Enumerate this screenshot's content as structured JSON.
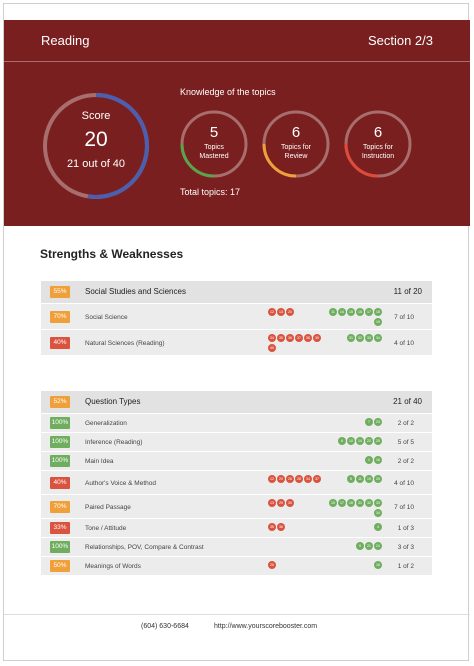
{
  "header": {
    "title": "Reading",
    "section": "Section 2/3"
  },
  "score": {
    "label": "Score",
    "value": "20",
    "detail": "21 out of 40",
    "fraction": 0.525
  },
  "knowledge": {
    "title": "Knowledge of the topics",
    "total": "Total topics: 17",
    "items": [
      {
        "count": "5",
        "label1": "Topics",
        "label2": "Mastered",
        "color": "#5aa34a"
      },
      {
        "count": "6",
        "label1": "Topics for",
        "label2": "Review",
        "color": "#f0a03a"
      },
      {
        "count": "6",
        "label1": "Topics for",
        "label2": "Instruction",
        "color": "#e04a3a"
      }
    ]
  },
  "strengths": {
    "title": "Strengths & Weaknesses"
  },
  "colors": {
    "green": "#6fae5f",
    "orange": "#f0a03a",
    "red": "#d9533f",
    "accent": "#7a1f1f"
  },
  "groups": [
    {
      "pct": "55%",
      "pct_color": "#f0a03a",
      "title": "Social Studies and Sciences",
      "score": "11 of 20",
      "rows": [
        {
          "pct": "70%",
          "pct_color": "#f0a03a",
          "label": "Social Science",
          "score": "7 of 10",
          "red": [
            "12",
            "13",
            "20"
          ],
          "green": [
            "11",
            "14",
            "15",
            "16",
            "17",
            "18",
            "19"
          ]
        },
        {
          "pct": "40%",
          "pct_color": "#d9533f",
          "label": "Natural Sciences (Reading)",
          "score": "4 of 10",
          "red": [
            "34",
            "35",
            "36",
            "37",
            "38",
            "39",
            "40"
          ],
          "green": [
            "31",
            "32",
            "33",
            "34"
          ]
        }
      ]
    },
    {
      "pct": "52%",
      "pct_color": "#f0a03a",
      "title": "Question Types",
      "score": "21 of 40",
      "rows": [
        {
          "pct": "100%",
          "pct_color": "#6fae5f",
          "label": "Generalization",
          "score": "2 of 2",
          "red": [],
          "green": [
            "7",
            "23"
          ]
        },
        {
          "pct": "100%",
          "pct_color": "#6fae5f",
          "label": "Inference (Reading)",
          "score": "5 of 5",
          "red": [],
          "green": [
            "6",
            "10",
            "14",
            "22",
            "25"
          ]
        },
        {
          "pct": "100%",
          "pct_color": "#6fae5f",
          "label": "Main Idea",
          "score": "2 of 2",
          "red": [],
          "green": [
            "1",
            "16"
          ]
        },
        {
          "pct": "40%",
          "pct_color": "#d9533f",
          "label": "Author's Voice & Method",
          "score": "4 of 10",
          "red": [
            "12",
            "20",
            "26",
            "28",
            "34",
            "37"
          ],
          "green": [
            "5",
            "11",
            "19",
            "25"
          ]
        },
        {
          "pct": "70%",
          "pct_color": "#f0a03a",
          "label": "Paired Passage",
          "score": "7 of 10",
          "red": [
            "13",
            "29",
            "30"
          ],
          "green": [
            "15",
            "17",
            "18",
            "31",
            "32",
            "33",
            "34"
          ]
        },
        {
          "pct": "33%",
          "pct_color": "#d9533f",
          "label": "Tone / Attitude",
          "score": "1 of 3",
          "red": [
            "35",
            "36"
          ],
          "green": [
            "4"
          ]
        },
        {
          "pct": "100%",
          "pct_color": "#6fae5f",
          "label": "Relationships, POV, Compare & Contrast",
          "score": "3 of 3",
          "red": [],
          "green": [
            "9",
            "21",
            "24"
          ]
        },
        {
          "pct": "50%",
          "pct_color": "#f0a03a",
          "label": "Meanings of Words",
          "score": "1 of 2",
          "red": [
            "26"
          ],
          "green": [
            "16"
          ]
        }
      ]
    }
  ],
  "footer": {
    "phone": "(604) 630-6684",
    "url": "http://www.yourscorebooster.com"
  }
}
